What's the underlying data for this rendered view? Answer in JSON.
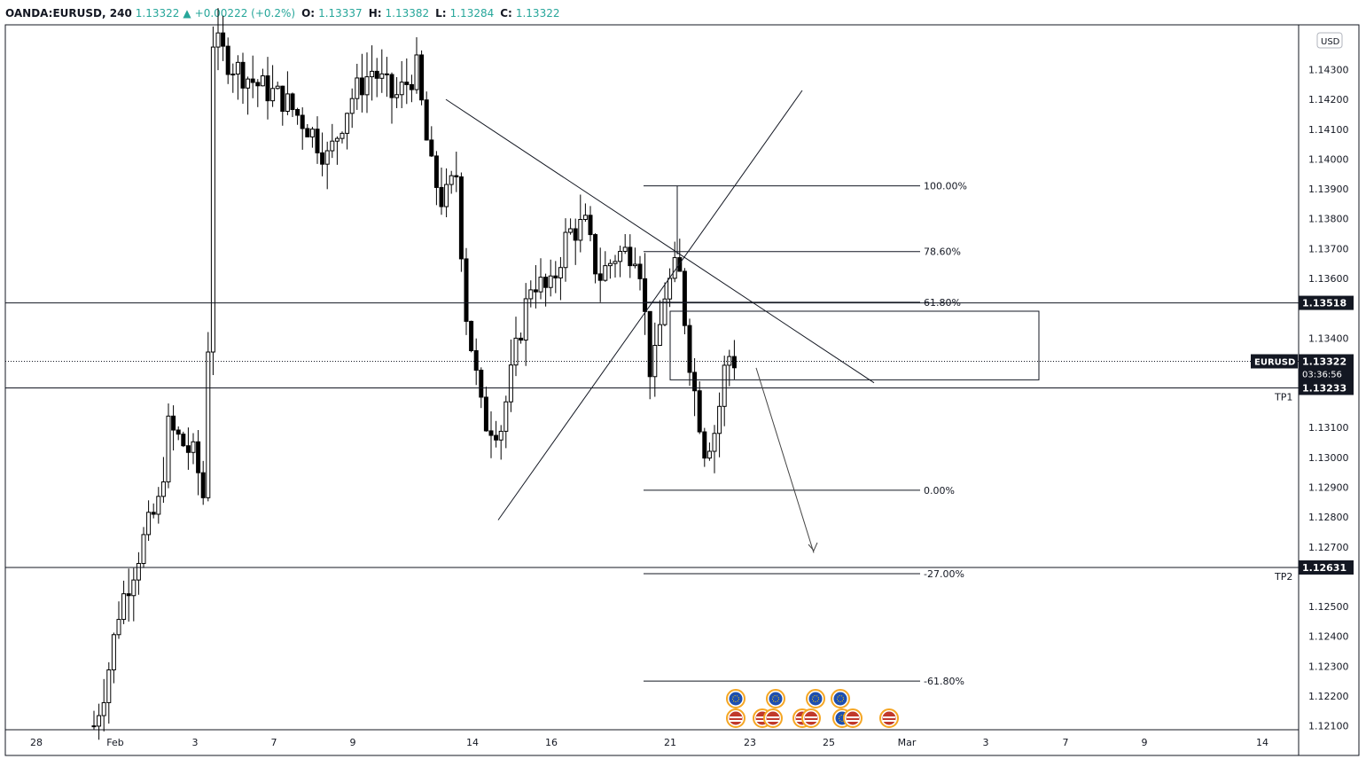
{
  "header": {
    "symbol": "OANDA:EURUSD, 240",
    "last": "1.13322",
    "arrow": "▲",
    "change": "+0.00222 (+0.2%)",
    "o_label": "O:",
    "o_value": "1.13337",
    "h_label": "H:",
    "h_value": "1.13382",
    "l_label": "L:",
    "l_value": "1.13284",
    "c_label": "C:",
    "c_value": "1.13322"
  },
  "colors": {
    "up": "#26a69a",
    "candle": "#000000",
    "axis_tag_bg": "#131722",
    "eu_flag": "#1e4fb0",
    "us_flag": "#c0392b",
    "event_ring": "#f5a623"
  },
  "chart_data": {
    "type": "candlestick",
    "symbol": "OANDA:EURUSD",
    "interval": "240",
    "currency_label": "USD",
    "ylim": [
      1.1209,
      1.1445
    ],
    "y_ticks": [
      "1.14300",
      "1.14200",
      "1.14100",
      "1.14000",
      "1.13900",
      "1.13800",
      "1.13700",
      "1.13600",
      "1.13400",
      "1.13100",
      "1.13000",
      "1.12900",
      "1.12800",
      "1.12700",
      "1.12500",
      "1.12400",
      "1.12300",
      "1.12200",
      "1.12100"
    ],
    "x_ticks": [
      "28",
      "Feb",
      "3",
      "7",
      "9",
      "14",
      "16",
      "21",
      "23",
      "25",
      "Mar",
      "3",
      "7",
      "9",
      "14"
    ],
    "horizontal_lines": [
      {
        "price": 1.13518,
        "label": "1.13518"
      },
      {
        "price": 1.13233,
        "label": "1.13233",
        "note": "TP1"
      },
      {
        "price": 1.12631,
        "label": "1.12631",
        "note": "TP2"
      }
    ],
    "current_price": {
      "symbol": "EURUSD",
      "price": "1.13322",
      "countdown": "03:36:56"
    },
    "fibonacci": [
      {
        "level": "100.00%",
        "price": 1.1391
      },
      {
        "level": "78.60%",
        "price": 1.1369
      },
      {
        "level": "61.80%",
        "price": 1.1352
      },
      {
        "level": "0.00%",
        "price": 1.1289
      },
      {
        "level": "-27.00%",
        "price": 1.1261
      },
      {
        "level": "-61.80%",
        "price": 1.1225
      }
    ],
    "events": {
      "eu": 5,
      "us": 6
    }
  }
}
